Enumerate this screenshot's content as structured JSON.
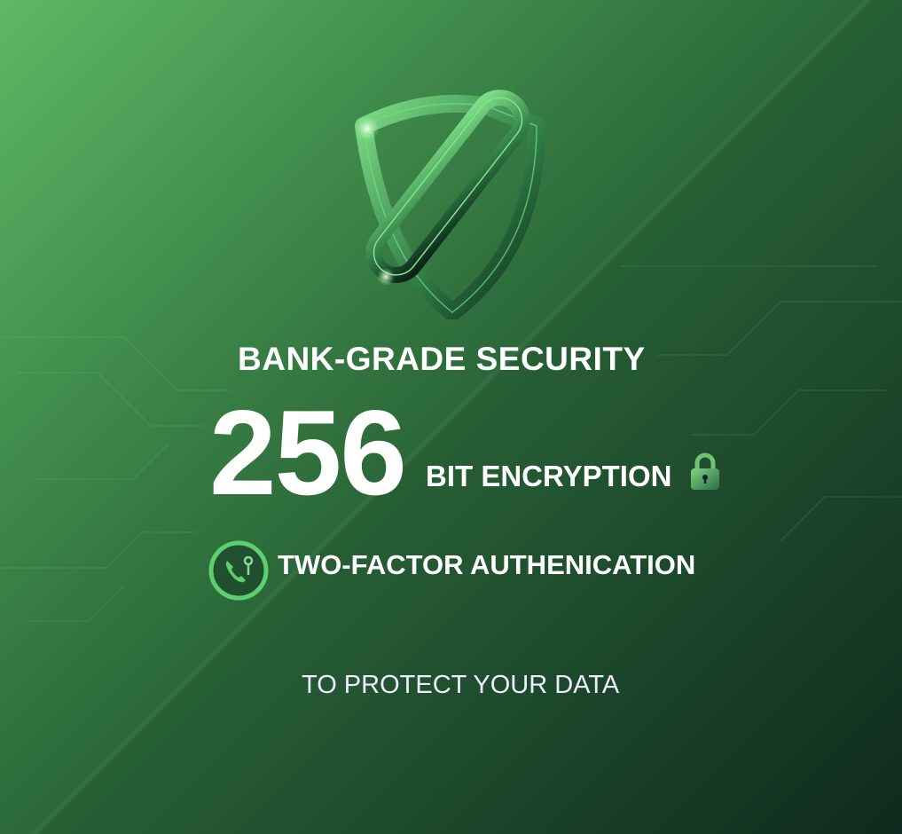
{
  "headline": "BANK-GRADE SECURITY",
  "encryption": {
    "number": "256",
    "label": "BIT ENCRYPTION",
    "icon": "lock-icon"
  },
  "two_factor": {
    "label": "TWO-FACTOR AUTHENICATION",
    "icon": "phone-key-icon"
  },
  "tagline": "TO PROTECT YOUR DATA",
  "logo": {
    "icon": "shield-link-icon"
  },
  "colors": {
    "accent": "#5ccf6e",
    "background_light": "#5fb866",
    "background_dark": "#0f2a1e"
  }
}
